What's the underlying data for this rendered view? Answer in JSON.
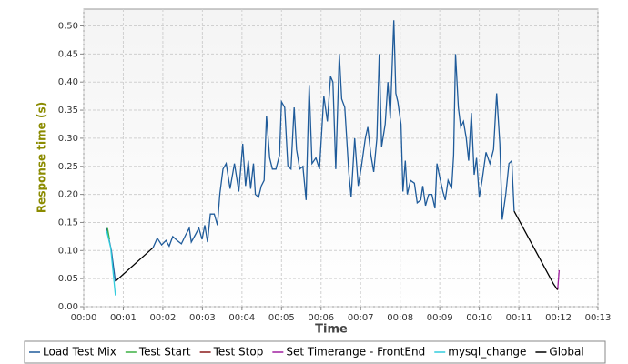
{
  "chart_data": {
    "type": "line",
    "xlabel": "Time",
    "ylabel": "Response time (s)",
    "xlim": [
      0,
      13
    ],
    "xticks": [
      {
        "value": 0,
        "label": "00:00"
      },
      {
        "value": 1,
        "label": "00:01"
      },
      {
        "value": 2,
        "label": "00:02"
      },
      {
        "value": 3,
        "label": "00:03"
      },
      {
        "value": 4,
        "label": "00:04"
      },
      {
        "value": 5,
        "label": "00:05"
      },
      {
        "value": 6,
        "label": "00:06"
      },
      {
        "value": 7,
        "label": "00:07"
      },
      {
        "value": 8,
        "label": "00:08"
      },
      {
        "value": 9,
        "label": "00:09"
      },
      {
        "value": 10,
        "label": "00:10"
      },
      {
        "value": 11,
        "label": "00:11"
      },
      {
        "value": 12,
        "label": "00:12"
      },
      {
        "value": 13,
        "label": "00:13"
      }
    ],
    "ylim": [
      0,
      0.53
    ],
    "yticks": [
      {
        "value": 0,
        "label": "0.00"
      },
      0.05,
      {
        "value": 0.1,
        "label": "0.10"
      },
      0.15,
      {
        "value": 0.2,
        "label": "0.20"
      },
      0.25,
      {
        "value": 0.3,
        "label": "0.30"
      },
      0.35,
      {
        "value": 0.4,
        "label": "0.40"
      },
      0.45,
      {
        "value": 0.5,
        "label": "0.50"
      }
    ],
    "grid": true,
    "legend": "bottom",
    "series": [
      {
        "name": "Load Test Mix",
        "color": "#1f5b9a",
        "x": [
          0.58,
          0.7,
          0.8,
          null,
          1.75,
          1.86,
          1.97,
          2.08,
          2.16,
          2.25,
          2.36,
          2.47,
          2.58,
          2.67,
          2.72,
          2.82,
          2.91,
          2.99,
          3.06,
          3.13,
          3.2,
          3.3,
          3.38,
          3.44,
          3.52,
          3.6,
          3.7,
          3.81,
          3.92,
          4.02,
          4.09,
          4.16,
          4.22,
          4.29,
          4.34,
          4.42,
          4.49,
          4.56,
          4.62,
          4.7,
          4.77,
          4.86,
          4.95,
          5.0,
          5.08,
          5.16,
          5.24,
          5.32,
          5.38,
          5.46,
          5.54,
          5.62,
          5.7,
          5.77,
          5.87,
          5.96,
          6.07,
          6.16,
          6.24,
          6.3,
          6.37,
          6.46,
          6.52,
          6.6,
          6.7,
          6.76,
          6.85,
          6.94,
          7.02,
          7.12,
          7.18,
          7.26,
          7.33,
          7.41,
          7.47,
          7.53,
          7.62,
          7.69,
          7.75,
          7.84,
          7.89,
          7.94,
          8.02,
          8.07,
          8.13,
          8.18,
          8.26,
          8.36,
          8.43,
          8.52,
          8.57,
          8.64,
          8.72,
          8.8,
          8.88,
          8.93,
          9.0,
          9.08,
          9.14,
          9.21,
          9.3,
          9.35,
          9.4,
          9.47,
          9.53,
          9.6,
          9.67,
          9.73,
          9.8,
          9.87,
          9.93,
          10.0,
          10.07,
          10.17,
          10.27,
          10.36,
          10.44,
          10.52,
          10.58,
          10.67,
          10.75,
          10.82,
          10.88
        ],
        "values": [
          0.14,
          0.1,
          0.045,
          null,
          0.105,
          0.122,
          0.11,
          0.118,
          0.108,
          0.125,
          0.118,
          0.112,
          0.128,
          0.14,
          0.115,
          0.128,
          0.14,
          0.12,
          0.145,
          0.115,
          0.165,
          0.165,
          0.145,
          0.2,
          0.245,
          0.255,
          0.21,
          0.255,
          0.205,
          0.29,
          0.215,
          0.26,
          0.21,
          0.255,
          0.2,
          0.195,
          0.215,
          0.225,
          0.34,
          0.265,
          0.245,
          0.245,
          0.27,
          0.365,
          0.355,
          0.25,
          0.245,
          0.355,
          0.28,
          0.245,
          0.25,
          0.19,
          0.395,
          0.255,
          0.265,
          0.245,
          0.375,
          0.33,
          0.41,
          0.4,
          0.245,
          0.45,
          0.37,
          0.355,
          0.24,
          0.195,
          0.3,
          0.215,
          0.25,
          0.3,
          0.32,
          0.27,
          0.24,
          0.3,
          0.45,
          0.285,
          0.325,
          0.4,
          0.335,
          0.51,
          0.38,
          0.365,
          0.325,
          0.205,
          0.26,
          0.2,
          0.225,
          0.22,
          0.185,
          0.19,
          0.215,
          0.18,
          0.2,
          0.2,
          0.175,
          0.255,
          0.23,
          0.205,
          0.19,
          0.225,
          0.21,
          0.27,
          0.45,
          0.355,
          0.32,
          0.33,
          0.3,
          0.26,
          0.345,
          0.235,
          0.265,
          0.195,
          0.225,
          0.275,
          0.255,
          0.28,
          0.38,
          0.29,
          0.155,
          0.2,
          0.255,
          0.26,
          0.17
        ]
      },
      {
        "name": "Test Start",
        "color": "#3cb043",
        "x": [
          0.6,
          0.65
        ],
        "values": [
          0.14,
          0.12
        ]
      },
      {
        "name": "Test Stop",
        "color": "#8b1a1a",
        "x": [
          11.93,
          11.98
        ],
        "values": [
          0.034,
          0.03
        ]
      },
      {
        "name": "Set Timerange - FrontEnd",
        "color": "#a020a0",
        "x": [
          11.98,
          12.02
        ],
        "values": [
          0.03,
          0.065
        ]
      },
      {
        "name": "mysql_change",
        "color": "#33ccdd",
        "x": [
          0.58,
          0.68,
          0.8
        ],
        "values": [
          0.135,
          0.105,
          0.02
        ]
      },
      {
        "name": "Global",
        "color": "#000000",
        "x": [
          0.8,
          1.75,
          null,
          10.88,
          11.88,
          11.98
        ],
        "values": [
          0.045,
          0.105,
          null,
          0.17,
          0.04,
          0.03
        ]
      }
    ]
  }
}
